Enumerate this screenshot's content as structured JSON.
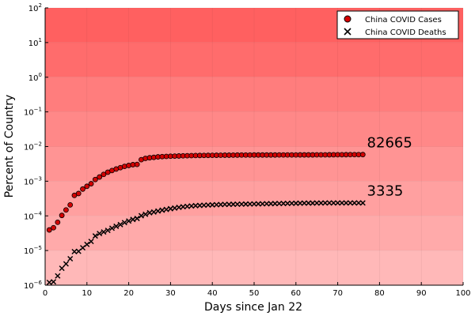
{
  "chart_data": {
    "type": "scatter",
    "title": "",
    "xlabel": "Days since Jan 22",
    "ylabel": "Percent of Country",
    "xlim": [
      0,
      100
    ],
    "ylim_log10": [
      -6,
      2
    ],
    "yscale": "log",
    "grid": true,
    "legend_position": "top-right",
    "background": {
      "description": "horizontal red bands, one per decade; darker at top",
      "band_colors": [
        "#ffb8b8",
        "#ffaaaa",
        "#ffa0a0",
        "#ff9494",
        "#ff8888",
        "#ff7d7d",
        "#ff6c6c",
        "#ff6060"
      ]
    },
    "x_ticks": [
      0,
      10,
      20,
      30,
      40,
      50,
      60,
      70,
      80,
      90,
      100
    ],
    "x_tick_labels": [
      "0",
      "10",
      "20",
      "30",
      "40",
      "50",
      "60",
      "70",
      "80",
      "90",
      "100"
    ],
    "y_ticks_exponents": [
      -6,
      -5,
      -4,
      -3,
      -2,
      -1,
      0,
      1,
      2
    ],
    "y_tick_base": "10",
    "y_tick_exponent_labels": [
      "−6",
      "−5",
      "−4",
      "−3",
      "−2",
      "−1",
      "0",
      "1",
      "2"
    ],
    "series": [
      {
        "name": "China COVID Cases",
        "marker": "circle",
        "color": "#d40000",
        "x": [
          1,
          2,
          3,
          4,
          5,
          6,
          7,
          8,
          9,
          10,
          11,
          12,
          13,
          14,
          15,
          16,
          17,
          18,
          19,
          20,
          21,
          22,
          23,
          24,
          25,
          26,
          27,
          28,
          29,
          30,
          31,
          32,
          33,
          34,
          35,
          36,
          37,
          38,
          39,
          40,
          41,
          42,
          43,
          44,
          45,
          46,
          47,
          48,
          49,
          50,
          51,
          52,
          53,
          54,
          55,
          56,
          57,
          58,
          59,
          60,
          61,
          62,
          63,
          64,
          65,
          66,
          67,
          68,
          69,
          70,
          71,
          72,
          73,
          74,
          75,
          76
        ],
        "y": [
          3.93e-05,
          4.55e-05,
          6.52e-05,
          0.000103,
          0.000148,
          0.000207,
          0.00039,
          0.000442,
          0.000594,
          0.000714,
          0.000847,
          0.00112,
          0.00132,
          0.00157,
          0.00182,
          0.00203,
          0.00225,
          0.00246,
          0.00268,
          0.00285,
          0.003,
          0.00305,
          0.00418,
          0.00456,
          0.00475,
          0.00488,
          0.00504,
          0.00513,
          0.00519,
          0.00525,
          0.0053,
          0.00535,
          0.0054,
          0.00544,
          0.00547,
          0.0055,
          0.00553,
          0.00555,
          0.00556,
          0.00558,
          0.0056,
          0.00562,
          0.00563,
          0.00564,
          0.00566,
          0.00567,
          0.00568,
          0.00569,
          0.00569,
          0.0057,
          0.0057,
          0.0057,
          0.00571,
          0.00571,
          0.00571,
          0.00572,
          0.00572,
          0.00572,
          0.00573,
          0.00573,
          0.00574,
          0.00574,
          0.00575,
          0.00575,
          0.00576,
          0.00576,
          0.00577,
          0.00578,
          0.00579,
          0.0058,
          0.00581,
          0.00582,
          0.00583,
          0.00584,
          0.00585,
          0.00586
        ]
      },
      {
        "name": "China COVID Deaths",
        "marker": "x",
        "color": "#000000",
        "x": [
          1,
          2,
          3,
          4,
          5,
          6,
          7,
          8,
          9,
          10,
          11,
          12,
          13,
          14,
          15,
          16,
          17,
          18,
          19,
          20,
          21,
          22,
          23,
          24,
          25,
          26,
          27,
          28,
          29,
          30,
          31,
          32,
          33,
          34,
          35,
          36,
          37,
          38,
          39,
          40,
          41,
          42,
          43,
          44,
          45,
          46,
          47,
          48,
          49,
          50,
          51,
          52,
          53,
          54,
          55,
          56,
          57,
          58,
          59,
          60,
          61,
          62,
          63,
          64,
          65,
          66,
          67,
          68,
          69,
          70,
          71,
          72,
          73,
          74,
          75,
          76
        ],
        "y": [
          1.2e-06,
          1.25e-06,
          1.85e-06,
          3.07e-06,
          4.13e-06,
          5.8e-06,
          9.3e-06,
          9.5e-06,
          1.2e-05,
          1.5e-05,
          1.83e-05,
          2.63e-05,
          3.09e-05,
          3.43e-05,
          3.81e-05,
          4.4e-05,
          5e-05,
          5.6e-05,
          6.4e-05,
          7.1e-05,
          7.86e-05,
          8.4e-05,
          0.000101,
          0.000111,
          0.000123,
          0.000129,
          0.000138,
          0.000146,
          0.000153,
          0.000161,
          0.000168,
          0.000176,
          0.000183,
          0.000188,
          0.000193,
          0.000197,
          0.0002,
          0.000203,
          0.000206,
          0.000208,
          0.00021,
          0.000212,
          0.000214,
          0.000215,
          0.000216,
          0.000217,
          0.000218,
          0.000219,
          0.00022,
          0.000221,
          0.000222,
          0.000223,
          0.000224,
          0.000225,
          0.000226,
          0.000227,
          0.000228,
          0.000229,
          0.00023,
          0.000231,
          0.000232,
          0.000233,
          0.000234,
          0.000234,
          0.000235,
          0.000235,
          0.000236,
          0.000236,
          0.000236,
          0.000236,
          0.000236,
          0.000236,
          0.000236,
          0.000236,
          0.000236,
          0.000236
        ]
      }
    ],
    "annotations": [
      {
        "text": "82665",
        "x": 77,
        "y": 0.0095
      },
      {
        "text": "3335",
        "x": 77,
        "y": 0.00039
      }
    ]
  }
}
